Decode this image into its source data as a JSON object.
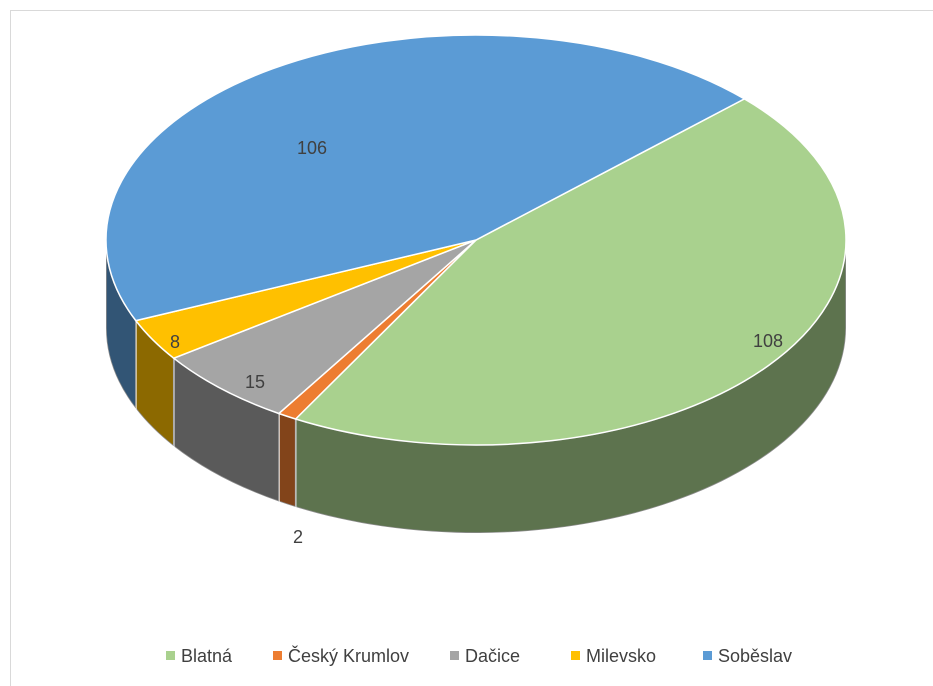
{
  "chart_data": {
    "type": "pie3d",
    "categories": [
      "Blatná",
      "Český Krumlov",
      "Dačice",
      "Milevsko",
      "Soběslav"
    ],
    "values": [
      108,
      2,
      15,
      8,
      106
    ],
    "colors": [
      "#a9d18e",
      "#ed7d31",
      "#a5a5a5",
      "#ffc000",
      "#5b9bd5"
    ],
    "legend": "bottom"
  }
}
